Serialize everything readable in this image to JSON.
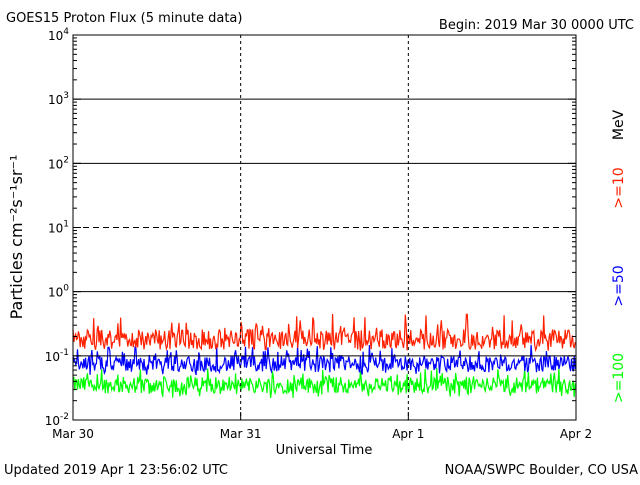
{
  "header": {
    "title": "GOES15 Proton Flux (5 minute data)",
    "begin": "Begin: 2019 Mar 30 0000 UTC"
  },
  "footer": {
    "updated": "Updated 2019 Apr  1 23:56:02 UTC",
    "source": "NOAA/SWPC Boulder, CO USA"
  },
  "chart_data": {
    "type": "line",
    "title": "GOES15 Proton Flux (5 minute data)",
    "xlabel": "Universal Time",
    "ylabel": "Particles cm⁻²s⁻¹sr⁻¹",
    "yscale": "log",
    "ylim": [
      0.01,
      10000
    ],
    "xlim": [
      "2019-03-30",
      "2019-04-02"
    ],
    "x_ticks": [
      "Mar 30",
      "Mar 31",
      "Apr 1",
      "Apr 2"
    ],
    "y_ticks": [
      {
        "base": "10",
        "exp": "4"
      },
      {
        "base": "10",
        "exp": "3"
      },
      {
        "base": "10",
        "exp": "2"
      },
      {
        "base": "10",
        "exp": "1"
      },
      {
        "base": "10",
        "exp": "0"
      },
      {
        "base": "10",
        "exp": "-1"
      },
      {
        "base": "10",
        "exp": "-2"
      }
    ],
    "reference_lines": [
      {
        "value": 1000,
        "style": "solid"
      },
      {
        "value": 100,
        "style": "solid"
      },
      {
        "value": 10,
        "style": "dashed"
      },
      {
        "value": 1,
        "style": "solid"
      },
      {
        "value": 0.1,
        "style": "solid"
      }
    ],
    "legend_unit": "MeV",
    "legend_position": "right",
    "series": [
      {
        "name": ">=10",
        "color": "#ff2000",
        "typical": 0.18,
        "range": [
          0.12,
          0.45
        ]
      },
      {
        "name": ">=50",
        "color": "#0000ff",
        "typical": 0.075,
        "range": [
          0.05,
          0.15
        ]
      },
      {
        "name": ">=100",
        "color": "#00ff00",
        "typical": 0.035,
        "range": [
          0.022,
          0.065
        ]
      }
    ]
  }
}
